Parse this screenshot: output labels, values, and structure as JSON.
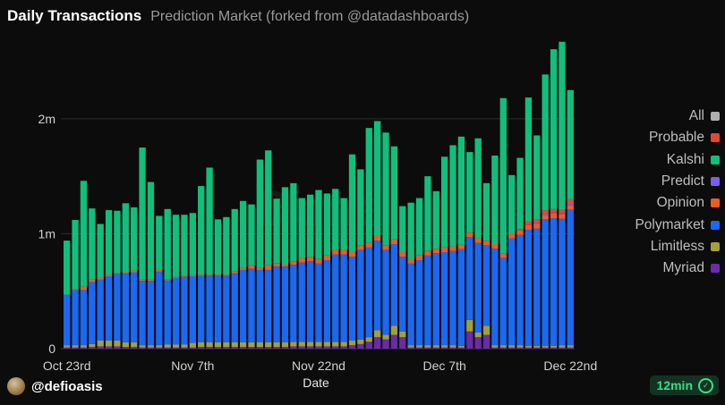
{
  "header": {
    "title": "Daily Transactions",
    "subtitle": "Prediction Market (forked from @datadashboards)"
  },
  "legend": {
    "items": [
      {
        "label": "All",
        "color": "#b0b0b0"
      },
      {
        "label": "Probable",
        "color": "#e5482f"
      },
      {
        "label": "Kalshi",
        "color": "#10bf7c"
      },
      {
        "label": "Predict",
        "color": "#7a5cf2"
      },
      {
        "label": "Opinion",
        "color": "#f05a24"
      },
      {
        "label": "Polymarket",
        "color": "#1b69f2"
      },
      {
        "label": "Limitless",
        "color": "#a3a038"
      },
      {
        "label": "Myriad",
        "color": "#6a2ba8"
      }
    ]
  },
  "footer": {
    "user": "@defioasis",
    "freshness": "12min"
  },
  "chart_data": {
    "type": "bar",
    "stacked": true,
    "xlabel": "Date",
    "ylabel": "",
    "ylim": [
      0,
      2800000
    ],
    "y_ticks": [
      {
        "value": 0,
        "label": "0"
      },
      {
        "value": 1000000,
        "label": "1m"
      },
      {
        "value": 2000000,
        "label": "2m"
      }
    ],
    "x_ticks": [
      {
        "index": 0,
        "label": "Oct 23rd"
      },
      {
        "index": 15,
        "label": "Nov 7th"
      },
      {
        "index": 30,
        "label": "Nov 22nd"
      },
      {
        "index": 45,
        "label": "Dec 7th"
      },
      {
        "index": 60,
        "label": "Dec 22nd"
      }
    ],
    "categories": [
      "Oct 23",
      "Oct 24",
      "Oct 25",
      "Oct 26",
      "Oct 27",
      "Oct 28",
      "Oct 29",
      "Oct 30",
      "Oct 31",
      "Nov 1",
      "Nov 2",
      "Nov 3",
      "Nov 4",
      "Nov 5",
      "Nov 6",
      "Nov 7",
      "Nov 8",
      "Nov 9",
      "Nov 10",
      "Nov 11",
      "Nov 12",
      "Nov 13",
      "Nov 14",
      "Nov 15",
      "Nov 16",
      "Nov 17",
      "Nov 18",
      "Nov 19",
      "Nov 20",
      "Nov 21",
      "Nov 22",
      "Nov 23",
      "Nov 24",
      "Nov 25",
      "Nov 26",
      "Nov 27",
      "Nov 28",
      "Nov 29",
      "Nov 30",
      "Dec 1",
      "Dec 2",
      "Dec 3",
      "Dec 4",
      "Dec 5",
      "Dec 6",
      "Dec 7",
      "Dec 8",
      "Dec 9",
      "Dec 10",
      "Dec 11",
      "Dec 12",
      "Dec 13",
      "Dec 14",
      "Dec 15",
      "Dec 16",
      "Dec 17",
      "Dec 18",
      "Dec 19",
      "Dec 20",
      "Dec 21",
      "Dec 22"
    ],
    "series": [
      {
        "name": "Myriad",
        "color": "#6a2ba8",
        "values": [
          10000,
          10000,
          10000,
          15000,
          20000,
          20000,
          20000,
          15000,
          15000,
          10000,
          10000,
          10000,
          10000,
          10000,
          10000,
          10000,
          15000,
          15000,
          15000,
          15000,
          15000,
          15000,
          15000,
          15000,
          15000,
          15000,
          15000,
          20000,
          20000,
          20000,
          20000,
          20000,
          20000,
          20000,
          30000,
          40000,
          60000,
          100000,
          80000,
          120000,
          100000,
          10000,
          10000,
          10000,
          10000,
          10000,
          10000,
          10000,
          150000,
          100000,
          120000,
          10000,
          10000,
          10000,
          10000,
          10000,
          10000,
          10000,
          10000,
          10000,
          10000
        ]
      },
      {
        "name": "Limitless",
        "color": "#a3a038",
        "values": [
          20000,
          20000,
          20000,
          25000,
          50000,
          50000,
          50000,
          40000,
          40000,
          20000,
          20000,
          20000,
          25000,
          25000,
          25000,
          40000,
          40000,
          40000,
          40000,
          40000,
          40000,
          40000,
          40000,
          40000,
          40000,
          40000,
          40000,
          40000,
          40000,
          40000,
          40000,
          40000,
          40000,
          40000,
          40000,
          40000,
          40000,
          60000,
          40000,
          80000,
          50000,
          20000,
          20000,
          20000,
          20000,
          20000,
          20000,
          15000,
          100000,
          40000,
          80000,
          20000,
          20000,
          20000,
          20000,
          15000,
          15000,
          15000,
          15000,
          20000,
          20000
        ]
      },
      {
        "name": "Polymarket",
        "color": "#1b69f2",
        "values": [
          440000,
          480000,
          480000,
          540000,
          530000,
          560000,
          580000,
          600000,
          610000,
          560000,
          560000,
          640000,
          560000,
          580000,
          590000,
          580000,
          580000,
          580000,
          580000,
          580000,
          600000,
          630000,
          640000,
          630000,
          630000,
          660000,
          660000,
          670000,
          690000,
          700000,
          680000,
          710000,
          760000,
          760000,
          730000,
          780000,
          780000,
          780000,
          740000,
          710000,
          650000,
          710000,
          740000,
          780000,
          800000,
          810000,
          820000,
          840000,
          720000,
          780000,
          700000,
          840000,
          760000,
          930000,
          960000,
          1010000,
          1020000,
          1100000,
          1110000,
          1100000,
          1180000
        ]
      },
      {
        "name": "Opinion",
        "color": "#f05a24",
        "values": [
          0,
          10000,
          30000,
          20000,
          15000,
          15000,
          10000,
          10000,
          15000,
          10000,
          10000,
          15000,
          10000,
          10000,
          10000,
          10000,
          10000,
          10000,
          10000,
          10000,
          20000,
          20000,
          30000,
          20000,
          40000,
          30000,
          20000,
          30000,
          40000,
          40000,
          40000,
          40000,
          40000,
          40000,
          40000,
          40000,
          40000,
          40000,
          40000,
          40000,
          40000,
          30000,
          40000,
          40000,
          40000,
          40000,
          40000,
          40000,
          40000,
          40000,
          40000,
          40000,
          40000,
          40000,
          40000,
          40000,
          40000,
          40000,
          40000,
          40000,
          40000
        ]
      },
      {
        "name": "Predict",
        "color": "#7a5cf2",
        "values": [
          0,
          0,
          0,
          0,
          0,
          0,
          0,
          0,
          0,
          0,
          0,
          0,
          0,
          0,
          0,
          0,
          0,
          0,
          0,
          0,
          0,
          0,
          0,
          0,
          0,
          0,
          0,
          0,
          0,
          0,
          0,
          0,
          0,
          0,
          0,
          0,
          0,
          0,
          0,
          0,
          0,
          0,
          0,
          0,
          0,
          0,
          0,
          0,
          0,
          0,
          0,
          0,
          0,
          0,
          0,
          0,
          10000,
          10000,
          10000,
          10000,
          10000
        ]
      },
      {
        "name": "Probable",
        "color": "#e5482f",
        "values": [
          0,
          0,
          0,
          0,
          0,
          0,
          0,
          0,
          0,
          0,
          0,
          0,
          0,
          0,
          0,
          0,
          0,
          0,
          0,
          0,
          0,
          0,
          0,
          0,
          0,
          0,
          0,
          0,
          0,
          0,
          0,
          0,
          0,
          0,
          0,
          0,
          0,
          0,
          0,
          0,
          0,
          0,
          0,
          0,
          0,
          0,
          0,
          0,
          0,
          0,
          0,
          0,
          0,
          0,
          10000,
          30000,
          30000,
          30000,
          30000,
          30000,
          40000
        ]
      },
      {
        "name": "Kalshi",
        "color": "#10bf7c",
        "values": [
          470000,
          600000,
          920000,
          620000,
          470000,
          560000,
          540000,
          600000,
          550000,
          1150000,
          850000,
          470000,
          610000,
          540000,
          530000,
          540000,
          770000,
          930000,
          480000,
          500000,
          540000,
          580000,
          530000,
          940000,
          1000000,
          560000,
          670000,
          680000,
          520000,
          540000,
          600000,
          540000,
          530000,
          450000,
          850000,
          660000,
          1000000,
          1000000,
          980000,
          810000,
          400000,
          500000,
          500000,
          650000,
          500000,
          790000,
          880000,
          940000,
          700000,
          870000,
          500000,
          770000,
          1350000,
          510000,
          620000,
          1080000,
          730000,
          1180000,
          1390000,
          1460000,
          950000
        ]
      }
    ]
  }
}
